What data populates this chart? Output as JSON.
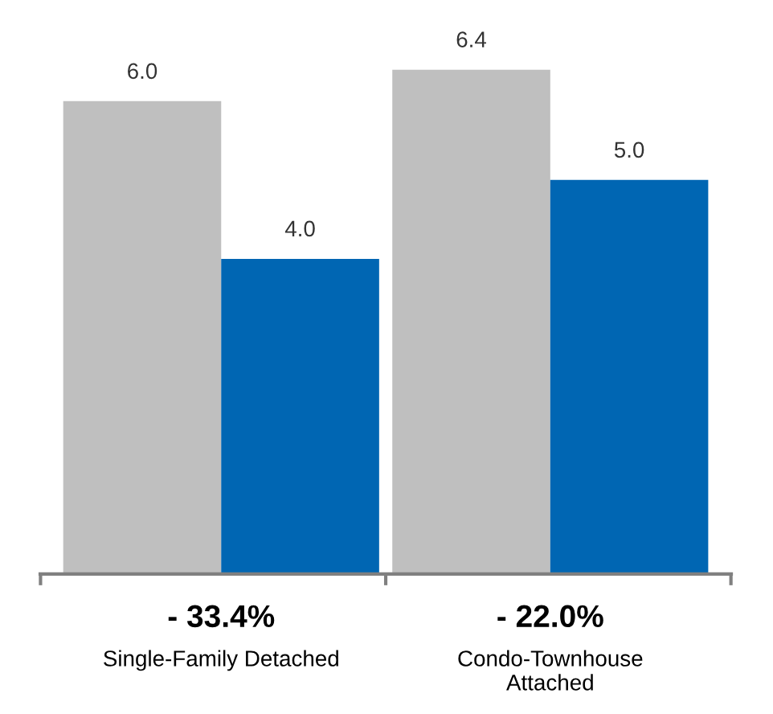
{
  "chart_data": {
    "type": "bar",
    "categories": [
      "Single-Family Detached",
      "Condo-Townhouse\nAttached"
    ],
    "series": [
      {
        "color": "#bfbfbf",
        "values": [
          6.0,
          6.4
        ],
        "value_labels": [
          "6.0",
          "6.4"
        ]
      },
      {
        "color": "#0066b3",
        "values": [
          4.0,
          5.0
        ],
        "value_labels": [
          "4.0",
          "5.0"
        ]
      }
    ],
    "annotations": [
      "- 33.4%",
      "- 22.0%"
    ],
    "grid": false,
    "legend": false
  }
}
